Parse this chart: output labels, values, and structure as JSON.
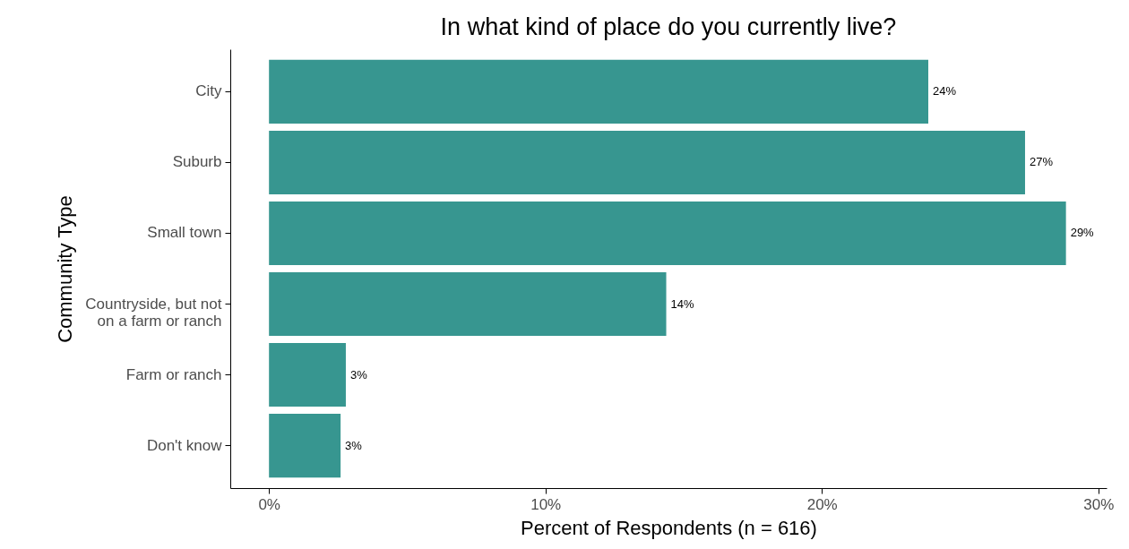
{
  "chart_data": {
    "type": "bar",
    "orientation": "horizontal",
    "title": "In what kind of place do you currently live?",
    "xlabel": "Percent of Respondents (n = 616)",
    "ylabel": "Community Type",
    "categories": [
      "City",
      "Suburb",
      "Small town",
      "Countryside, but not\non a farm or ranch",
      "Farm or ranch",
      "Don't know"
    ],
    "values": [
      23.85,
      27.35,
      28.83,
      14.37,
      2.78,
      2.59
    ],
    "value_labels": [
      "24%",
      "27%",
      "29%",
      "14%",
      "3%",
      "3%"
    ],
    "color": "#379690",
    "xlim": [
      -1.4,
      30.3
    ],
    "xticks": [
      {
        "value": 0,
        "label": "0%"
      },
      {
        "value": 10,
        "label": "10%"
      },
      {
        "value": 20,
        "label": "20%"
      },
      {
        "value": 30,
        "label": "30%"
      }
    ],
    "grid": false
  }
}
